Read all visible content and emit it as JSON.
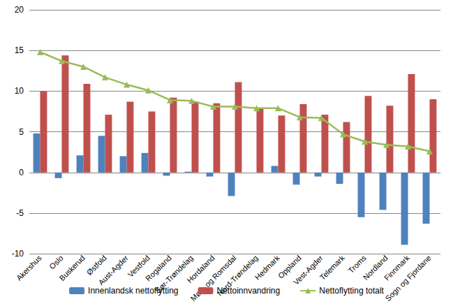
{
  "chart_data": {
    "type": "bar",
    "categories": [
      "Akershus",
      "Oslo",
      "Buskerud",
      "Østfold",
      "Aust-Agder",
      "Vestfold",
      "Rogaland",
      "Sør-Trøndelag",
      "Hordaland",
      "Møre og Romsdal",
      "Nord-Trøndelag",
      "Hedmark",
      "Oppland",
      "Vest-Agder",
      "Telemark",
      "Troms",
      "Nordland",
      "Finnmark",
      "Sogn og Fjordane"
    ],
    "series": [
      {
        "name": "Innenlandsk nettoflytting",
        "type": "bar",
        "color": "#4f81bd",
        "values": [
          4.8,
          -0.7,
          2.1,
          4.5,
          2.0,
          2.4,
          -0.4,
          0.1,
          -0.5,
          -2.9,
          0.0,
          0.8,
          -1.5,
          -0.5,
          -1.4,
          -5.5,
          -4.6,
          -8.9,
          -6.3
        ]
      },
      {
        "name": "Nettoinnvandring",
        "type": "bar",
        "color": "#c0504d",
        "values": [
          10.0,
          14.4,
          10.9,
          7.1,
          8.7,
          7.5,
          9.2,
          8.7,
          8.5,
          11.1,
          7.9,
          7.0,
          8.4,
          7.1,
          6.2,
          9.4,
          8.2,
          12.1,
          9.0
        ]
      },
      {
        "name": "Nettoflytting totalt",
        "type": "line",
        "color": "#9bbb59",
        "marker": "triangle",
        "values": [
          14.8,
          13.7,
          13.0,
          11.7,
          10.8,
          10.1,
          8.9,
          8.8,
          8.1,
          8.1,
          7.9,
          7.9,
          6.8,
          6.7,
          4.7,
          3.8,
          3.4,
          3.2,
          2.6
        ]
      }
    ],
    "ylim": [
      -10,
      20
    ],
    "yticks": [
      -10,
      -5,
      0,
      5,
      10,
      15,
      20
    ],
    "grid": true,
    "legend": "bottom"
  }
}
